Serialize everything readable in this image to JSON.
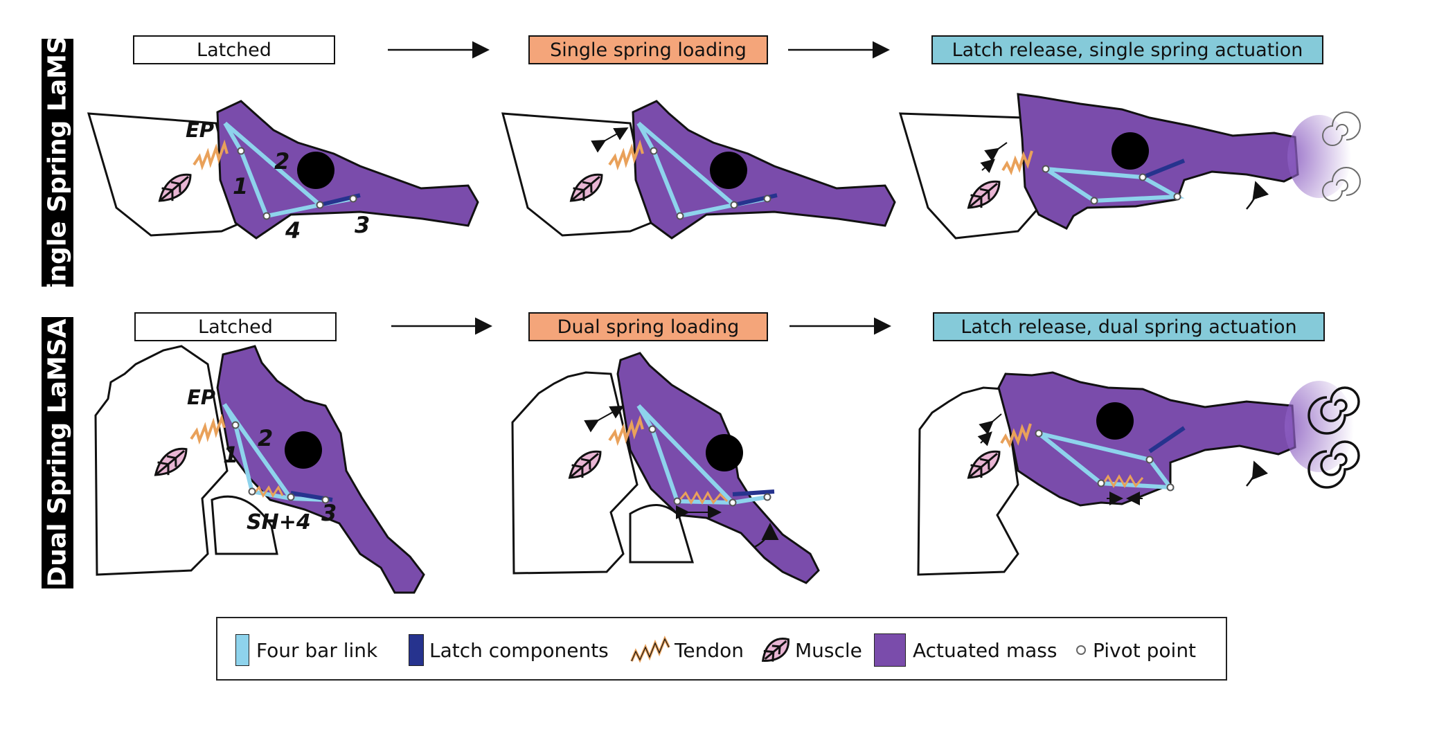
{
  "row_labels": {
    "single": "Single Spring LaMSA",
    "dual": "Dual Spring LaMSA"
  },
  "stages": {
    "single": [
      "Latched",
      "Single spring loading",
      "Latch release, single spring actuation"
    ],
    "dual": [
      "Latched",
      "Dual spring loading",
      "Latch release, dual spring actuation"
    ]
  },
  "part_labels": {
    "ep": "EP",
    "one": "1",
    "two": "2",
    "three": "3",
    "four": "4",
    "sh4": "SH+4"
  },
  "legend": [
    {
      "label": "Four bar link",
      "icon": "four-bar-link-swatch"
    },
    {
      "label": "Latch components",
      "icon": "latch-swatch"
    },
    {
      "label": "Tendon",
      "icon": "tendon-zigzag-icon"
    },
    {
      "label": "Muscle",
      "icon": "muscle-icon"
    },
    {
      "label": "Actuated mass",
      "icon": "actuated-mass-swatch"
    },
    {
      "label": "Pivot point",
      "icon": "pivot-circle-icon"
    }
  ],
  "colors": {
    "four_bar_link": "#8ed3ec",
    "latch": "#26338e",
    "tendon": "#e9a15a",
    "muscle": "#e9b6d4",
    "actuated_mass": "#7a4cab",
    "stage_loading": "#f4a57a",
    "stage_release": "#85cad9",
    "row_label_bg": "#000000"
  }
}
